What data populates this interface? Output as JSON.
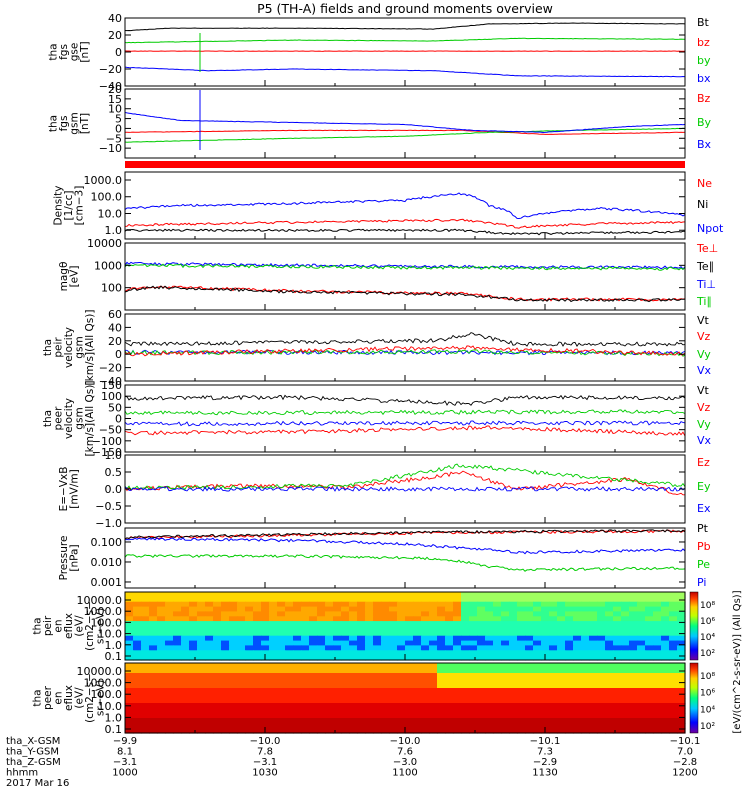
{
  "title": "P5 (TH-A) fields and ground moments overview",
  "colors": {
    "black": "#000000",
    "red": "#ff0000",
    "green": "#00cc00",
    "blue": "#0000ff"
  },
  "chart_data": [
    {
      "type": "line",
      "panel": "fgs-gse",
      "ylabel": [
        "tha",
        "fgs",
        "gse",
        "[nT]"
      ],
      "ylim": [
        -40,
        40
      ],
      "ticks": [
        "40",
        "20",
        "0",
        "−20",
        "−40"
      ],
      "tick_values": [
        40,
        20,
        0,
        -20,
        -40
      ],
      "legend": [
        {
          "label": "Bt",
          "color": "black"
        },
        {
          "label": "bz",
          "color": "red"
        },
        {
          "label": "by",
          "color": "green"
        },
        {
          "label": "bx",
          "color": "blue"
        }
      ],
      "series": [
        {
          "color": "black",
          "t": [
            0,
            0.08,
            0.3,
            0.55,
            0.65,
            0.8,
            1
          ],
          "v": [
            25,
            28,
            28,
            27,
            33,
            34,
            33
          ]
        },
        {
          "color": "red",
          "t": [
            0,
            1
          ],
          "v": [
            1,
            1
          ]
        },
        {
          "color": "green",
          "t": [
            0,
            0.3,
            0.55,
            0.7,
            1
          ],
          "v": [
            11,
            14,
            13,
            16,
            15
          ]
        },
        {
          "color": "blue",
          "t": [
            0,
            0.15,
            0.3,
            0.55,
            0.7,
            1
          ],
          "v": [
            -18,
            -22,
            -20,
            -22,
            -28,
            -29
          ]
        }
      ]
    },
    {
      "type": "line",
      "panel": "fgs-gsm",
      "ylabel": [
        "tha",
        "fgs",
        "gsm",
        "[nT]"
      ],
      "ylim": [
        -15,
        20
      ],
      "ticks": [
        "20",
        "15",
        "10",
        "5",
        "0",
        "−5",
        "−10"
      ],
      "tick_values": [
        20,
        15,
        10,
        5,
        0,
        -5,
        -10
      ],
      "legend": [
        {
          "label": "Bz",
          "color": "red"
        },
        {
          "label": "By",
          "color": "green"
        },
        {
          "label": "Bx",
          "color": "blue"
        }
      ],
      "series": [
        {
          "color": "red",
          "t": [
            0,
            0.3,
            0.6,
            0.75,
            1
          ],
          "v": [
            -2,
            -1,
            -1,
            -3,
            -2
          ]
        },
        {
          "color": "green",
          "t": [
            0,
            0.15,
            0.3,
            0.5,
            0.65,
            0.8,
            1
          ],
          "v": [
            -7,
            -6,
            -5,
            -4,
            -2,
            -1,
            0
          ]
        },
        {
          "color": "blue",
          "t": [
            0,
            0.1,
            0.3,
            0.5,
            0.62,
            0.75,
            0.9,
            1
          ],
          "v": [
            8,
            4,
            3,
            2,
            -1,
            -2,
            1,
            2
          ]
        }
      ]
    },
    {
      "type": "line",
      "panel": "density",
      "log": true,
      "ylabel": [
        "Density",
        "[1/cc]",
        "[cm−3]"
      ],
      "ylim": [
        0.3,
        3000
      ],
      "ticks": [
        "1000.0",
        "100.0",
        "10.0",
        "1.0"
      ],
      "tick_values": [
        1000,
        100,
        10,
        1
      ],
      "legend": [
        {
          "label": "Ne",
          "color": "red"
        },
        {
          "label": "Ni",
          "color": "black"
        },
        {
          "label": "Npot",
          "color": "blue"
        }
      ],
      "series": [
        {
          "color": "red",
          "t": [
            0,
            0.3,
            0.6,
            0.7,
            0.85,
            1
          ],
          "v": [
            2,
            3,
            4,
            1.5,
            2.5,
            3
          ]
        },
        {
          "color": "black",
          "t": [
            0,
            0.6,
            0.68,
            1
          ],
          "v": [
            1,
            1,
            0.6,
            0.8
          ]
        },
        {
          "color": "blue",
          "t": [
            0,
            0.1,
            0.3,
            0.5,
            0.6,
            0.65,
            0.7,
            0.85,
            1
          ],
          "v": [
            20,
            30,
            40,
            60,
            150,
            30,
            5,
            20,
            8
          ]
        }
      ]
    },
    {
      "type": "line",
      "panel": "temperature",
      "log": true,
      "ylabel": [
        "magθ",
        "[eV]"
      ],
      "ylim": [
        10,
        10000
      ],
      "ticks": [
        "10000",
        "1000",
        "100"
      ],
      "tick_values": [
        10000,
        1000,
        100
      ],
      "legend": [
        {
          "label": "Te⊥",
          "color": "red"
        },
        {
          "label": "Te∥",
          "color": "black"
        },
        {
          "label": "Ti⊥",
          "color": "blue"
        },
        {
          "label": "Ti∥",
          "color": "green"
        }
      ],
      "series": [
        {
          "color": "red",
          "t": [
            0,
            0.05,
            0.3,
            0.6,
            0.7,
            1
          ],
          "v": [
            80,
            110,
            70,
            55,
            30,
            30
          ]
        },
        {
          "color": "black",
          "t": [
            0,
            0.05,
            0.3,
            0.6,
            0.7,
            1
          ],
          "v": [
            75,
            105,
            65,
            50,
            28,
            28
          ]
        },
        {
          "color": "blue",
          "t": [
            0,
            0.5,
            1
          ],
          "v": [
            1200,
            900,
            800
          ]
        },
        {
          "color": "green",
          "t": [
            0,
            0.5,
            1
          ],
          "v": [
            1000,
            800,
            700
          ]
        }
      ]
    },
    {
      "type": "line",
      "panel": "peir-velocity-gsm",
      "ylabel": [
        "tha",
        "peir",
        "velocity",
        "gsm",
        "[km/s](All Qs)]"
      ],
      "ylim": [
        -40,
        60
      ],
      "ticks": [
        "60",
        "40",
        "20",
        "0",
        "−20",
        "−40"
      ],
      "tick_values": [
        60,
        40,
        20,
        0,
        -20,
        -40
      ],
      "legend": [
        {
          "label": "Vt",
          "color": "black"
        },
        {
          "label": "Vz",
          "color": "red"
        },
        {
          "label": "Vy",
          "color": "green"
        },
        {
          "label": "Vx",
          "color": "blue"
        }
      ],
      "series": [
        {
          "color": "black",
          "t": [
            0,
            0.3,
            0.55,
            0.62,
            0.7,
            1
          ],
          "v": [
            15,
            18,
            20,
            30,
            15,
            15
          ]
        },
        {
          "color": "blue",
          "t": [
            0,
            1
          ],
          "v": [
            3,
            2
          ]
        },
        {
          "color": "green",
          "t": [
            0,
            0.6,
            1
          ],
          "v": [
            2,
            4,
            0
          ]
        },
        {
          "color": "red",
          "t": [
            0,
            0.6,
            1
          ],
          "v": [
            0,
            10,
            0
          ]
        }
      ]
    },
    {
      "type": "line",
      "panel": "peer-velocity-gsm",
      "ylabel": [
        "tha",
        "peer",
        "velocity",
        "gsm",
        "[km/s](All Qs)]"
      ],
      "ylim": [
        -150,
        150
      ],
      "ticks": [
        "150",
        "100",
        "50",
        "0",
        "−50",
        "−100",
        "−150"
      ],
      "tick_values": [
        150,
        100,
        50,
        0,
        -50,
        -100,
        -150
      ],
      "legend": [
        {
          "label": "Vt",
          "color": "black"
        },
        {
          "label": "Vz",
          "color": "red"
        },
        {
          "label": "Vy",
          "color": "green"
        },
        {
          "label": "Vx",
          "color": "blue"
        }
      ],
      "series": [
        {
          "color": "black",
          "t": [
            0,
            0.3,
            0.62,
            0.7,
            1
          ],
          "v": [
            90,
            95,
            65,
            95,
            90
          ]
        },
        {
          "color": "green",
          "t": [
            0,
            1
          ],
          "v": [
            25,
            30
          ]
        },
        {
          "color": "blue",
          "t": [
            0,
            0.5,
            1
          ],
          "v": [
            -25,
            -20,
            -20
          ]
        },
        {
          "color": "red",
          "t": [
            0,
            0.3,
            0.65,
            1
          ],
          "v": [
            -65,
            -60,
            -40,
            -70
          ]
        }
      ]
    },
    {
      "type": "line",
      "panel": "e-field",
      "ylabel": [
        "E=−VxB",
        "[mV/m]"
      ],
      "ylim": [
        -1,
        1
      ],
      "ticks": [
        "1.0",
        "0.5",
        "0.0",
        "−0.5",
        "−1.0"
      ],
      "tick_values": [
        1,
        0.5,
        0,
        -0.5,
        -1
      ],
      "legend": [
        {
          "label": "Ez",
          "color": "red"
        },
        {
          "label": "Ey",
          "color": "green"
        },
        {
          "label": "Ex",
          "color": "blue"
        }
      ],
      "series": [
        {
          "color": "red",
          "t": [
            0,
            0.2,
            0.4,
            0.55,
            0.6,
            0.7,
            0.9,
            1
          ],
          "v": [
            0,
            0.1,
            0.05,
            0.35,
            0.5,
            0,
            0.3,
            -0.2
          ]
        },
        {
          "color": "green",
          "t": [
            0,
            0.4,
            0.6,
            1
          ],
          "v": [
            0.02,
            0.1,
            0.7,
            0.1
          ]
        },
        {
          "color": "blue",
          "t": [
            0,
            1
          ],
          "v": [
            0,
            0
          ]
        }
      ]
    },
    {
      "type": "line",
      "panel": "pressure",
      "log": true,
      "ylabel": [
        "Pressure",
        "[nPa]"
      ],
      "ylim": [
        0.0005,
        0.5
      ],
      "ticks": [
        "0.100",
        "0.010",
        "0.001"
      ],
      "tick_values": [
        0.1,
        0.01,
        0.001
      ],
      "legend": [
        {
          "label": "Pt",
          "color": "black"
        },
        {
          "label": "Pb",
          "color": "red"
        },
        {
          "label": "Pe",
          "color": "green"
        },
        {
          "label": "Pi",
          "color": "blue"
        }
      ],
      "series": [
        {
          "color": "red",
          "t": [
            0,
            0.3,
            0.6,
            1
          ],
          "v": [
            0.16,
            0.22,
            0.3,
            0.35
          ]
        },
        {
          "color": "black",
          "t": [
            0,
            0.3,
            0.6,
            1
          ],
          "v": [
            0.17,
            0.24,
            0.32,
            0.37
          ]
        },
        {
          "color": "blue",
          "t": [
            0,
            0.3,
            0.5,
            0.6,
            0.7,
            1
          ],
          "v": [
            0.15,
            0.12,
            0.08,
            0.05,
            0.03,
            0.04
          ]
        },
        {
          "color": "green",
          "t": [
            0,
            0.3,
            0.55,
            0.65,
            0.7,
            1
          ],
          "v": [
            0.02,
            0.02,
            0.015,
            0.006,
            0.004,
            0.005
          ]
        }
      ]
    },
    {
      "type": "heatmap",
      "panel": "peir-eflux",
      "ylabel": [
        "tha",
        "peir",
        "en",
        "eflux",
        "(eV/",
        "(cm2−s−",
        "sr−eV)"
      ],
      "ticks": [
        "10000.0",
        "1000.0",
        "100.0",
        "10.0",
        "1.0",
        "0.1"
      ]
    },
    {
      "type": "heatmap",
      "panel": "peer-eflux",
      "ylabel": [
        "tha",
        "peer",
        "en",
        "eflux",
        "(eV/",
        "(cm2−s−",
        "sr−eV)"
      ],
      "ticks": [
        "10000.0",
        "1000.0",
        "100.0",
        "10.0",
        "1.0",
        "0.1"
      ]
    }
  ],
  "colorbar": {
    "label": "[eV/(cm^2-s-sr-eV)] (All Qs)]",
    "ticks_upper": [
      "10⁸",
      "10⁶",
      "10⁴",
      "10²"
    ],
    "ticks_lower": [
      "10⁸",
      "10⁶",
      "10⁴",
      "10²"
    ]
  },
  "xaxis": {
    "rows": [
      {
        "label": "tha_X-GSM",
        "values": [
          "−9.9",
          "−10.0",
          "−10.0",
          "−10.1",
          "−10.1"
        ]
      },
      {
        "label": "tha_Y-GSM",
        "values": [
          "8.1",
          "7.8",
          "7.6",
          "7.3",
          "7.0"
        ]
      },
      {
        "label": "tha_Z-GSM",
        "values": [
          "−3.1",
          "−3.1",
          "−3.0",
          "−2.9",
          "−2.8"
        ]
      },
      {
        "label": "hhmm",
        "values": [
          "1000",
          "1030",
          "1100",
          "1130",
          "1200"
        ]
      }
    ],
    "date": "2017 Mar 16"
  }
}
